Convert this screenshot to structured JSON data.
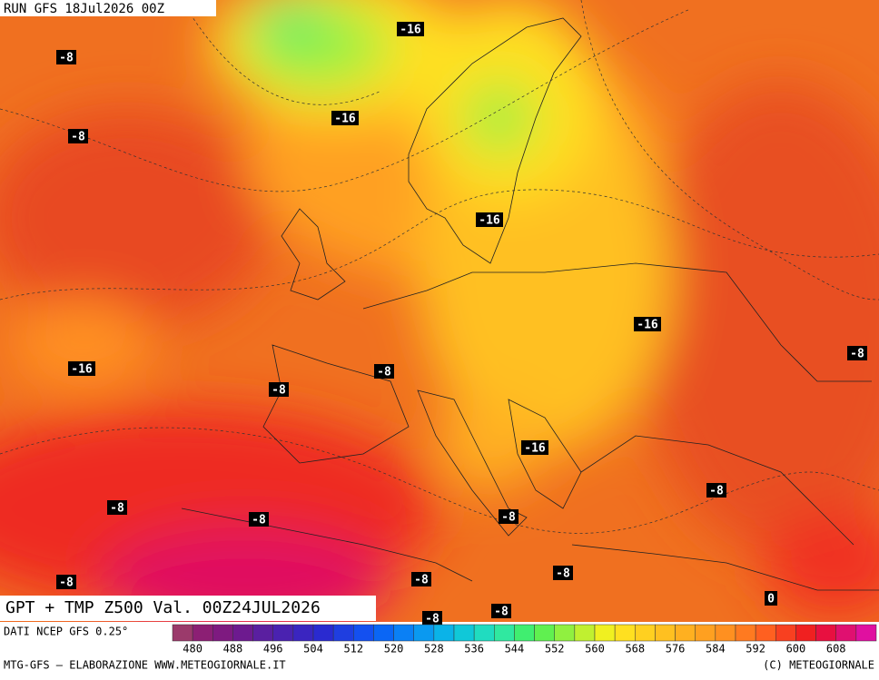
{
  "header": {
    "run": "RUN GFS 18Jul2026 00Z",
    "title": "GPT + TMP Z500 Val. 00Z24JUL2026"
  },
  "map": {
    "labels": [
      "-16",
      "-8",
      "-16",
      "-8",
      "-16",
      "-16",
      "-8",
      "-16",
      "-8",
      "-8",
      "-16",
      "-8",
      "-8",
      "-8",
      "-8",
      "-8",
      "-8",
      "-8",
      "0",
      "-8",
      "-8"
    ]
  },
  "footer": {
    "source": "DATI NCEP GFS 0.25°",
    "credit": "MTG-GFS — ELABORAZIONE WWW.METEOGIORNALE.IT",
    "copyright": "(C) METEOGIORNALE"
  },
  "colorbar": {
    "labels": [
      "480",
      "488",
      "496",
      "504",
      "512",
      "520",
      "528",
      "536",
      "544",
      "552",
      "560",
      "568",
      "576",
      "584",
      "592",
      "600",
      "608"
    ],
    "colors": [
      "#9b3a6b",
      "#8c1f74",
      "#7e1a80",
      "#6d1a8f",
      "#5a1fa0",
      "#4a22b0",
      "#3a25c0",
      "#2a2ad0",
      "#1f3ee0",
      "#1450f0",
      "#0a66f5",
      "#0a80f5",
      "#0a99f0",
      "#0ab3e8",
      "#10c8d8",
      "#20dcc0",
      "#30e8a0",
      "#40ee70",
      "#60f050",
      "#90f040",
      "#c0f030",
      "#f0f020",
      "#ffe020",
      "#ffd020",
      "#ffc020",
      "#ffb020",
      "#ffa020",
      "#ff9020",
      "#ff7a20",
      "#ff6020",
      "#f84020",
      "#f02020",
      "#e81040",
      "#e01070",
      "#e010a0"
    ]
  }
}
